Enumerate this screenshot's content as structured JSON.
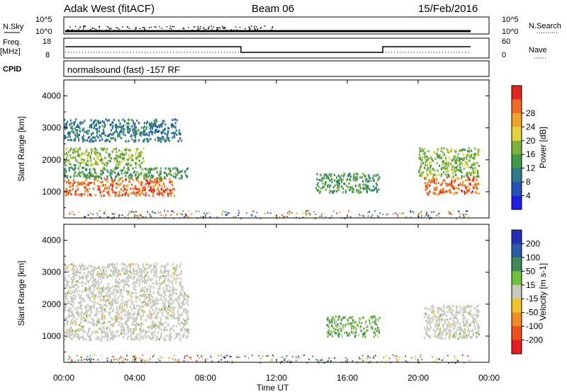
{
  "header": {
    "station": "Adak West (fitACF)",
    "beam": "Beam 06",
    "date": "15/Feb/2016"
  },
  "strips": {
    "nsky": {
      "label": "N.Sky",
      "ticks": [
        "10^5",
        "10^0"
      ],
      "right_label": "N.Search",
      "right_ticks": [
        "10^5",
        "10^0"
      ]
    },
    "freq": {
      "label": "Freq.",
      "unit": "[MHz]",
      "ticks": [
        "18",
        "8"
      ],
      "right_label": "Nave",
      "right_ticks": [
        "60",
        "0"
      ]
    },
    "cpid": {
      "label": "CPID",
      "text": "normalsound (fast) -157 RF"
    }
  },
  "chart_data": [
    {
      "type": "heatmap",
      "title": "Power",
      "xlabel": "Time UT",
      "ylabel": "Slant Range [km]",
      "x_ticks": [
        "00:00",
        "04:00",
        "08:00",
        "12:00",
        "16:00",
        "20:00",
        "00:00"
      ],
      "xlim_hours": [
        0,
        24
      ],
      "ylim": [
        180,
        4500
      ],
      "y_ticks": [
        1000,
        2000,
        3000,
        4000
      ],
      "colorbar": {
        "label": "Power [dB]",
        "ticks": [
          "4",
          "8",
          "12",
          "16",
          "20",
          "24",
          "28"
        ],
        "colors": [
          "#1f1fe8",
          "#2352b8",
          "#2e7a8c",
          "#3f9b4a",
          "#7bb23a",
          "#e4d23a",
          "#f2a32a",
          "#f06a22",
          "#e8231c"
        ]
      },
      "echo_regions": [
        {
          "t_start": 0.0,
          "t_end": 6.2,
          "range_min": 900,
          "range_max": 1450,
          "level": "28"
        },
        {
          "t_start": 0.0,
          "t_end": 7.0,
          "range_min": 1450,
          "range_max": 1800,
          "level": "12"
        },
        {
          "t_start": 0.0,
          "t_end": 4.5,
          "range_min": 1850,
          "range_max": 2400,
          "level": "16"
        },
        {
          "t_start": 0.0,
          "t_end": 6.6,
          "range_min": 2600,
          "range_max": 3300,
          "level": "8"
        },
        {
          "t_start": 14.2,
          "t_end": 17.8,
          "range_min": 1000,
          "range_max": 1600,
          "level": "12"
        },
        {
          "t_start": 20.3,
          "t_end": 23.4,
          "range_min": 950,
          "range_max": 1500,
          "level": "28"
        },
        {
          "t_start": 20.0,
          "t_end": 23.4,
          "range_min": 1500,
          "range_max": 2400,
          "level": "16"
        }
      ]
    },
    {
      "type": "heatmap",
      "title": "Velocity",
      "xlabel": "Time UT",
      "ylabel": "Slant Range [km]",
      "x_ticks": [
        "00:00",
        "04:00",
        "08:00",
        "12:00",
        "16:00",
        "20:00",
        "00:00"
      ],
      "xlim_hours": [
        0,
        24
      ],
      "ylim": [
        180,
        4500
      ],
      "y_ticks": [
        1000,
        2000,
        3000,
        4000
      ],
      "colorbar": {
        "label": "Velocity [m s-1]",
        "ticks": [
          "200",
          "100",
          "50",
          "15",
          "-15",
          "-50",
          "-100",
          "-200"
        ],
        "colors": [
          "#2230b8",
          "#2b5aa8",
          "#3f8a54",
          "#6fc03a",
          "#c9c9c0",
          "#f2c22a",
          "#f08a22",
          "#f0501c",
          "#e81c1c"
        ]
      },
      "echo_regions": [
        {
          "t_start": 0.0,
          "t_end": 7.0,
          "range_min": 900,
          "range_max": 2600,
          "level": "15"
        },
        {
          "t_start": 0.0,
          "t_end": 6.6,
          "range_min": 2600,
          "range_max": 3300,
          "level": "15"
        },
        {
          "t_start": 14.8,
          "t_end": 17.8,
          "range_min": 1000,
          "range_max": 1650,
          "level": "50"
        },
        {
          "t_start": 20.3,
          "t_end": 23.4,
          "range_min": 950,
          "range_max": 2000,
          "level": "15"
        }
      ]
    }
  ]
}
